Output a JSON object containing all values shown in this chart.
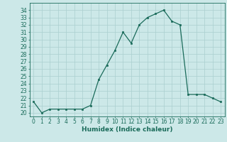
{
  "x": [
    0,
    1,
    2,
    3,
    4,
    5,
    6,
    7,
    8,
    9,
    10,
    11,
    12,
    13,
    14,
    15,
    16,
    17,
    18,
    19,
    20,
    21,
    22,
    23
  ],
  "y": [
    21.5,
    20.0,
    20.5,
    20.5,
    20.5,
    20.5,
    20.5,
    21.0,
    24.5,
    26.5,
    28.5,
    31.0,
    29.5,
    32.0,
    33.0,
    33.5,
    34.0,
    32.5,
    32.0,
    22.5,
    22.5,
    22.5,
    22.0,
    21.5
  ],
  "line_color": "#1a6b5a",
  "marker_color": "#1a6b5a",
  "bg_color": "#cce8e8",
  "grid_color": "#aacfcf",
  "xlabel": "Humidex (Indice chaleur)",
  "ylim": [
    19.5,
    35.0
  ],
  "xlim": [
    -0.5,
    23.5
  ],
  "yticks": [
    20,
    21,
    22,
    23,
    24,
    25,
    26,
    27,
    28,
    29,
    30,
    31,
    32,
    33,
    34
  ],
  "xticks": [
    0,
    1,
    2,
    3,
    4,
    5,
    6,
    7,
    8,
    9,
    10,
    11,
    12,
    13,
    14,
    15,
    16,
    17,
    18,
    19,
    20,
    21,
    22,
    23
  ],
  "tick_fontsize": 5.5,
  "label_fontsize": 6.5
}
